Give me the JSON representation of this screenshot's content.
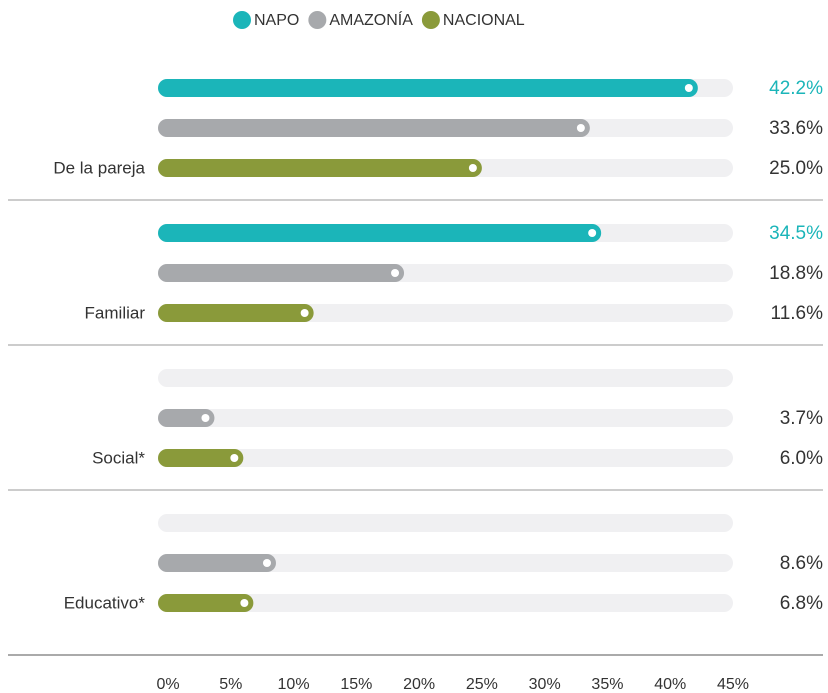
{
  "chart_data": {
    "type": "bar",
    "orientation": "horizontal",
    "categories": [
      "De la pareja",
      "Familiar",
      "Social*",
      "Educativo*"
    ],
    "series": [
      {
        "name": "NAPO",
        "color": "#1bb5b9",
        "values": [
          42.2,
          34.5,
          null,
          null
        ],
        "value_labels": [
          "42.2%",
          "34.5%",
          null,
          null
        ]
      },
      {
        "name": "AMAZONÍA",
        "color": "#a7a9ac",
        "values": [
          33.6,
          18.8,
          3.7,
          8.6
        ],
        "value_labels": [
          "33.6%",
          "18.8%",
          "3.7%",
          "8.6%"
        ]
      },
      {
        "name": "NACIONAL",
        "color": "#8a9a3a",
        "values": [
          25.0,
          11.6,
          6.0,
          6.8
        ],
        "value_labels": [
          "25.0%",
          "11.6%",
          "6.0%",
          "6.8%"
        ]
      }
    ],
    "xlim": [
      0,
      45
    ],
    "xticks": [
      {
        "value": 0,
        "label": "0%"
      },
      {
        "value": 5,
        "label": "5%"
      },
      {
        "value": 10,
        "label": "10%"
      },
      {
        "value": 15,
        "label": "15%"
      },
      {
        "value": 20,
        "label": "20%"
      },
      {
        "value": 25,
        "label": "25%"
      },
      {
        "value": 30,
        "label": "30%"
      },
      {
        "value": 35,
        "label": "35%"
      },
      {
        "value": 40,
        "label": "40%"
      },
      {
        "value": 45,
        "label": "45%"
      }
    ],
    "legend": "top"
  }
}
